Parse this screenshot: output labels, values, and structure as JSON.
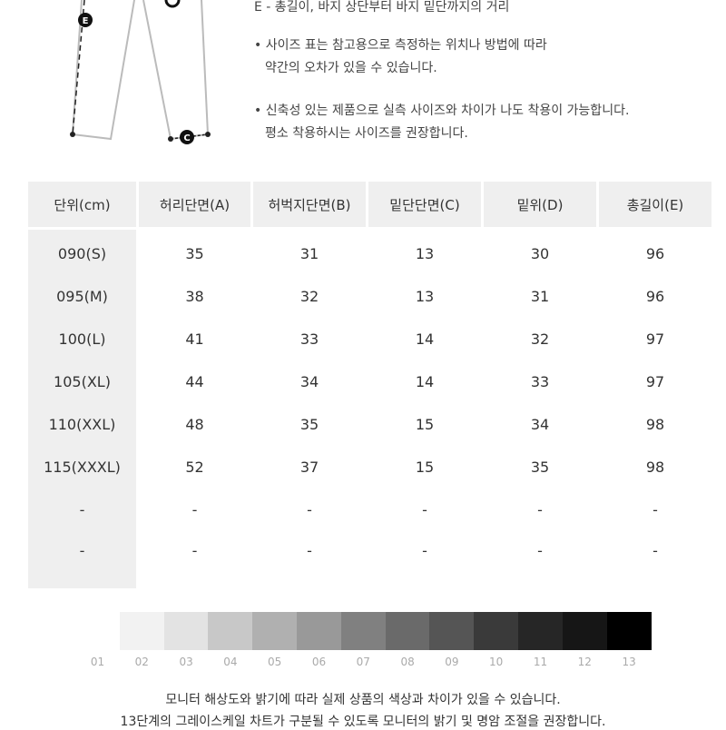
{
  "notes": {
    "line_e": "E - 총길이, 바지 상단부터 바지 밑단까지의 거리",
    "bullet1_line1": "• 사이즈 표는 참고용으로 측정하는 위치나 방법에 따라",
    "bullet1_line2": "약간의 오차가 있을 수 있습니다.",
    "bullet2_line1": "• 신축성 있는 제품으로 실측 사이즈와 차이가 나도 착용이 가능합니다.",
    "bullet2_line2": "평소 착용하시는 사이즈를 권장합니다."
  },
  "diagram": {
    "label_e": "E",
    "label_c": "C"
  },
  "table": {
    "headers": [
      "단위(cm)",
      "허리단면(A)",
      "허벅지단면(B)",
      "밑단단면(C)",
      "밑위(D)",
      "총길이(E)"
    ],
    "rows": [
      [
        "090(S)",
        "35",
        "31",
        "13",
        "30",
        "96"
      ],
      [
        "095(M)",
        "38",
        "32",
        "13",
        "31",
        "96"
      ],
      [
        "100(L)",
        "41",
        "33",
        "14",
        "32",
        "97"
      ],
      [
        "105(XL)",
        "44",
        "34",
        "14",
        "33",
        "97"
      ],
      [
        "110(XXL)",
        "48",
        "35",
        "15",
        "34",
        "98"
      ],
      [
        "115(XXXL)",
        "52",
        "37",
        "15",
        "35",
        "98"
      ],
      [
        "-",
        "-",
        "-",
        "-",
        "-",
        "-"
      ],
      [
        "-",
        "-",
        "-",
        "-",
        "-",
        "-"
      ]
    ]
  },
  "grayscale": {
    "labels": [
      "01",
      "02",
      "03",
      "04",
      "05",
      "06",
      "07",
      "08",
      "09",
      "10",
      "11",
      "12",
      "13"
    ],
    "colors": [
      "#ffffff",
      "#f2f2f2",
      "#e3e3e3",
      "#c8c8c8",
      "#b0b0b0",
      "#999999",
      "#808080",
      "#6a6a6a",
      "#555555",
      "#3a3a3a",
      "#262626",
      "#161616",
      "#000000"
    ]
  },
  "footer": {
    "line1": "모니터 해상도와 밝기에 따라 실제 상품의 색상과 차이가 있을 수 있습니다.",
    "line2": "13단계의 그레이스케일 차트가 구분될 수 있도록 모니터의 밝기 및 명암 조절을 권장합니다."
  }
}
